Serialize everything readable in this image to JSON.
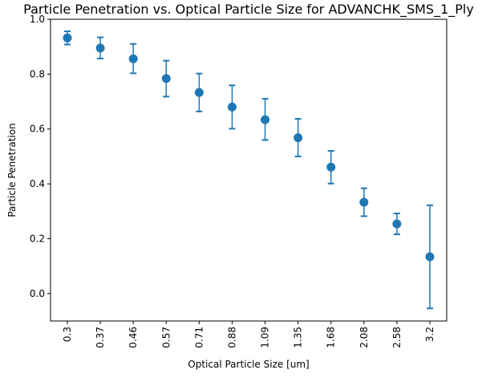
{
  "chart_data": {
    "type": "scatter",
    "title": "Particle Penetration vs. Optical Particle Size for ADVANCHK_SMS_1_Ply",
    "xlabel": "Optical Particle Size [um]",
    "ylabel": "Particle Penetration",
    "categories": [
      "0.3",
      "0.37",
      "0.46",
      "0.57",
      "0.71",
      "0.88",
      "1.09",
      "1.35",
      "1.68",
      "2.08",
      "2.58",
      "3.2"
    ],
    "series": [
      {
        "values": [
          0.932,
          0.895,
          0.856,
          0.784,
          0.733,
          0.68,
          0.634,
          0.568,
          0.461,
          0.333,
          0.254,
          0.134
        ],
        "err_low": [
          0.908,
          0.857,
          0.803,
          0.718,
          0.664,
          0.601,
          0.56,
          0.5,
          0.401,
          0.282,
          0.216,
          -0.054
        ],
        "err_high": [
          0.956,
          0.934,
          0.91,
          0.849,
          0.802,
          0.759,
          0.71,
          0.637,
          0.52,
          0.384,
          0.292,
          0.322
        ],
        "color": "#1f77b4"
      }
    ],
    "ylim": [
      -0.1,
      1.0
    ],
    "yticks": [
      "0.0",
      "0.2",
      "0.4",
      "0.6",
      "0.8",
      "1.0"
    ],
    "grid": false,
    "legend": "none"
  }
}
